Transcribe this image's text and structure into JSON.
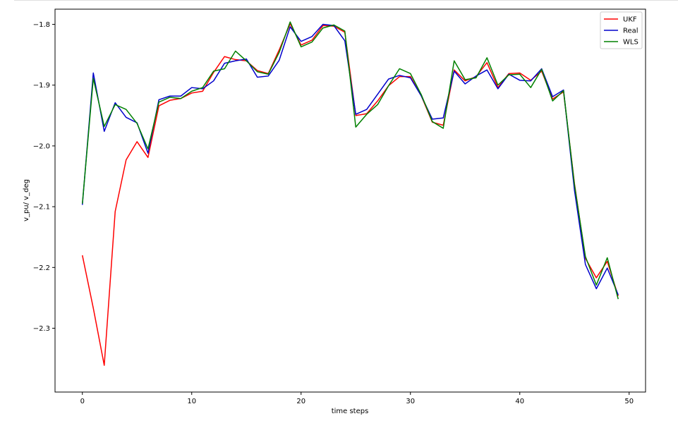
{
  "chart_data": {
    "type": "line",
    "title": "",
    "xlabel": "time steps",
    "ylabel": "v_pu/ v_deg",
    "xlim": [
      -2.5,
      51.5
    ],
    "ylim": [
      -2.405,
      -1.775
    ],
    "xticks": [
      0,
      10,
      20,
      30,
      40,
      50
    ],
    "xtick_labels": [
      "0",
      "10",
      "20",
      "30",
      "40",
      "50"
    ],
    "yticks": [
      -1.8,
      -1.9,
      -2.0,
      -2.1,
      -2.2,
      -2.3
    ],
    "ytick_labels": [
      "−1.8",
      "−1.9",
      "−2.0",
      "−2.1",
      "−2.2",
      "−2.3"
    ],
    "grid": false,
    "legend_position": "top-right",
    "x": [
      0,
      1,
      2,
      3,
      4,
      5,
      6,
      7,
      8,
      9,
      10,
      11,
      12,
      13,
      14,
      15,
      16,
      17,
      18,
      19,
      20,
      21,
      22,
      23,
      24,
      25,
      26,
      27,
      28,
      29,
      30,
      31,
      32,
      33,
      34,
      35,
      36,
      37,
      38,
      39,
      40,
      41,
      42,
      43,
      44,
      45,
      46,
      47,
      48,
      49
    ],
    "series": [
      {
        "name": "UKF",
        "color": "#ff0000",
        "values": [
          -2.18,
          -2.267,
          -2.361,
          -2.108,
          -2.023,
          -1.993,
          -2.019,
          -1.934,
          -1.925,
          -1.922,
          -1.913,
          -1.91,
          -1.879,
          -1.853,
          -1.858,
          -1.86,
          -1.876,
          -1.881,
          -1.842,
          -1.799,
          -1.834,
          -1.826,
          -1.802,
          -1.803,
          -1.813,
          -1.95,
          -1.947,
          -1.926,
          -1.901,
          -1.886,
          -1.886,
          -1.918,
          -1.961,
          -1.966,
          -1.875,
          -1.893,
          -1.886,
          -1.863,
          -1.904,
          -1.881,
          -1.88,
          -1.892,
          -1.877,
          -1.923,
          -1.911,
          -2.062,
          -2.185,
          -2.217,
          -2.19,
          -2.247
        ]
      },
      {
        "name": "Real",
        "color": "#0000cc",
        "values": [
          -2.097,
          -1.88,
          -1.976,
          -1.929,
          -1.953,
          -1.962,
          -2.012,
          -1.924,
          -1.918,
          -1.918,
          -1.904,
          -1.906,
          -1.893,
          -1.864,
          -1.86,
          -1.857,
          -1.887,
          -1.885,
          -1.859,
          -1.804,
          -1.828,
          -1.82,
          -1.8,
          -1.802,
          -1.827,
          -1.948,
          -1.94,
          -1.915,
          -1.89,
          -1.884,
          -1.888,
          -1.918,
          -1.956,
          -1.954,
          -1.877,
          -1.898,
          -1.885,
          -1.875,
          -1.906,
          -1.882,
          -1.892,
          -1.893,
          -1.873,
          -1.919,
          -1.908,
          -2.073,
          -2.195,
          -2.235,
          -2.201,
          -2.245
        ]
      },
      {
        "name": "WLS",
        "color": "#008000",
        "values": [
          -2.095,
          -1.889,
          -1.968,
          -1.932,
          -1.94,
          -1.963,
          -2.005,
          -1.928,
          -1.92,
          -1.922,
          -1.91,
          -1.904,
          -1.877,
          -1.873,
          -1.844,
          -1.86,
          -1.878,
          -1.882,
          -1.846,
          -1.796,
          -1.837,
          -1.829,
          -1.806,
          -1.801,
          -1.811,
          -1.969,
          -1.948,
          -1.932,
          -1.901,
          -1.873,
          -1.881,
          -1.916,
          -1.96,
          -1.971,
          -1.86,
          -1.891,
          -1.888,
          -1.855,
          -1.9,
          -1.883,
          -1.882,
          -1.904,
          -1.874,
          -1.926,
          -1.909,
          -2.064,
          -2.182,
          -2.229,
          -2.184,
          -2.252
        ]
      }
    ]
  }
}
